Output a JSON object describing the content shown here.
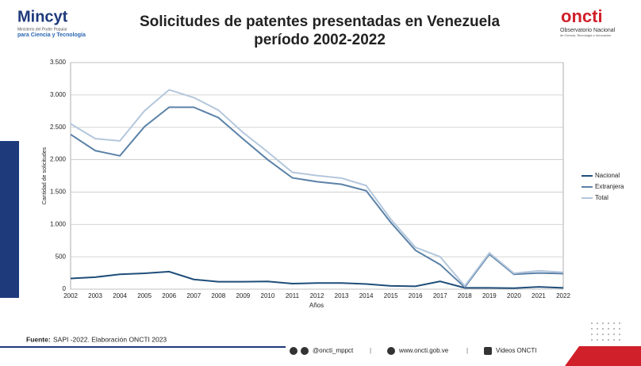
{
  "header": {
    "left_logo": "Mincyt",
    "left_logo_line1": "Ministerio del Poder Popular",
    "left_logo_line2": "para Ciencia y Tecnología",
    "right_logo": "oncti",
    "right_logo_line1": "Observatorio Nacional",
    "right_logo_line2": "de Ciencia, Tecnología e Innovación"
  },
  "footer": {
    "source_label": "Fuente:",
    "source_text": "SAPI -2022. Elaboración ONCTI 2023",
    "social": "@oncti_mppct",
    "web": "www.oncti.gob.ve",
    "videos": "Videos ONCTI"
  },
  "chart_data": {
    "type": "line",
    "title": "Solicitudes de patentes presentadas en Venezuela",
    "subtitle": "período 2002-2022",
    "x_label": "Años",
    "y_label": "Cantidad de solicitudes",
    "categories": [
      "2002",
      "2003",
      "2004",
      "2005",
      "2006",
      "2007",
      "2008",
      "2009",
      "2010",
      "2011",
      "2012",
      "2013",
      "2014",
      "2015",
      "2016",
      "2017",
      "2018",
      "2019",
      "2020",
      "2021",
      "2022"
    ],
    "series": [
      {
        "name": "Nacional",
        "color": "#1f4e79",
        "values": [
          165,
          185,
          230,
          245,
          270,
          150,
          115,
          115,
          120,
          85,
          95,
          95,
          80,
          50,
          45,
          120,
          20,
          20,
          15,
          35,
          20
        ]
      },
      {
        "name": "Extranjera",
        "color": "#5b82a8",
        "values": [
          2390,
          2140,
          2060,
          2510,
          2810,
          2810,
          2650,
          2320,
          2000,
          1720,
          1660,
          1620,
          1520,
          1030,
          600,
          380,
          30,
          540,
          230,
          250,
          240
        ]
      },
      {
        "name": "Total",
        "color": "#b4c7dc",
        "values": [
          2555,
          2325,
          2290,
          2755,
          3080,
          2960,
          2765,
          2420,
          2120,
          1805,
          1755,
          1715,
          1600,
          1080,
          645,
          500,
          50,
          560,
          245,
          285,
          260
        ]
      }
    ],
    "ylim": [
      0,
      3500
    ],
    "yticks": [
      0,
      500,
      {
        "value": 1000,
        "label": "1.000"
      },
      {
        "value": 1500,
        "label": "1.500"
      },
      {
        "value": 2000,
        "label": "2.000"
      },
      {
        "value": 2500,
        "label": "2.500"
      },
      {
        "value": 3000,
        "label": "3.000"
      },
      {
        "value": 3500,
        "label": "3.500"
      }
    ],
    "grid": true,
    "legend": "right"
  }
}
